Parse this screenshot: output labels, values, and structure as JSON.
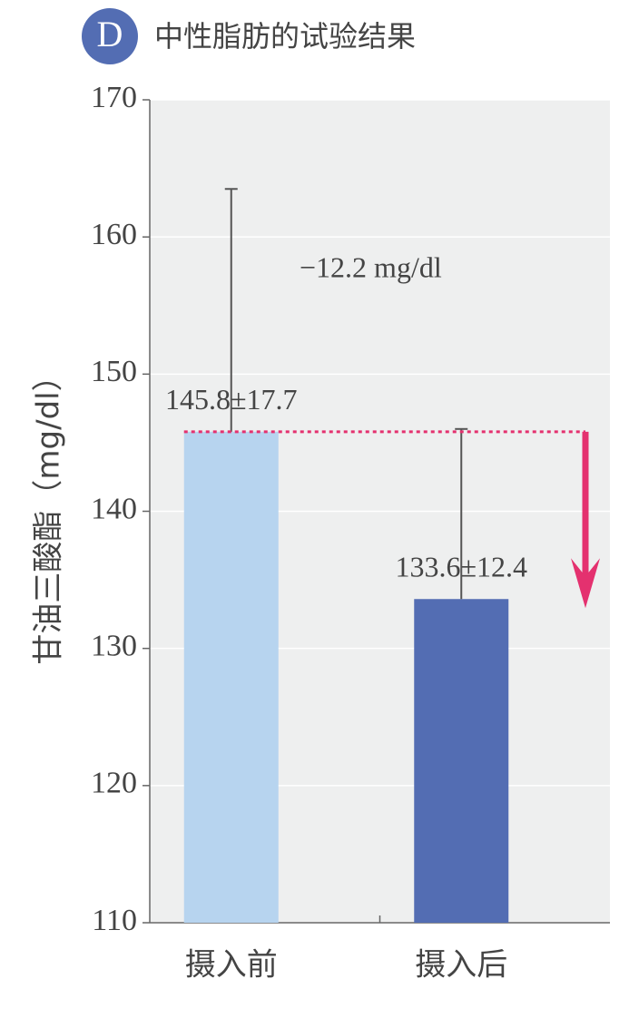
{
  "chart_data": {
    "type": "bar",
    "badge": "D",
    "title": "中性脂肪的试验结果",
    "y_label": "甘油三酸酯（mg/dl）",
    "categories": [
      "摄入前",
      "摄入后"
    ],
    "values": [
      145.8,
      133.6
    ],
    "errors": [
      17.7,
      12.4
    ],
    "value_labels": [
      "145.8±17.7",
      "133.6±12.4"
    ],
    "colors": [
      "#b7d4ef",
      "#536db3"
    ],
    "annotation": "−12.2 mg/dl",
    "ylim": [
      110,
      170
    ],
    "yticks": [
      110,
      120,
      130,
      140,
      150,
      160,
      170
    ],
    "grid": true
  }
}
